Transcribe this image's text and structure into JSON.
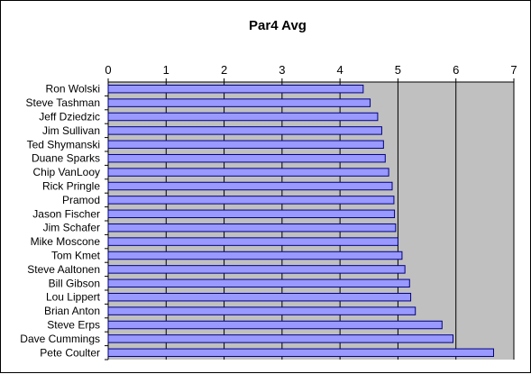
{
  "chart_data": {
    "type": "bar",
    "orientation": "horizontal",
    "title": "Par4 Avg",
    "xlabel": "",
    "ylabel": "",
    "xlim": [
      0,
      7
    ],
    "ticks": [
      "0",
      "1",
      "2",
      "3",
      "4",
      "5",
      "6",
      "7"
    ],
    "axis_position": "top",
    "grid": true,
    "legend": "none",
    "categories": [
      "Ron Wolski",
      "Steve Tashman",
      "Jeff Dziedzic",
      "Jim Sullivan",
      "Ted Shymanski",
      "Duane Sparks",
      "Chip VanLooy",
      "Rick Pringle",
      "Pramod",
      "Jason Fischer",
      "Jim Schafer",
      "Mike Moscone",
      "Tom Kmet",
      "Steve Aaltonen",
      "Bill Gibson",
      "Lou Lippert",
      "Brian Anton",
      "Steve Erps",
      "Dave Cummings",
      "Pete Coulter"
    ],
    "values": [
      4.4,
      4.52,
      4.65,
      4.72,
      4.75,
      4.78,
      4.84,
      4.9,
      4.93,
      4.94,
      4.96,
      5.0,
      5.07,
      5.12,
      5.2,
      5.22,
      5.3,
      5.76,
      5.95,
      6.65
    ],
    "colors": {
      "bar_fill": "#9999ff",
      "bar_stroke": "#000080",
      "plot_background": "#c0c0c0",
      "gridline": "#000000"
    }
  }
}
